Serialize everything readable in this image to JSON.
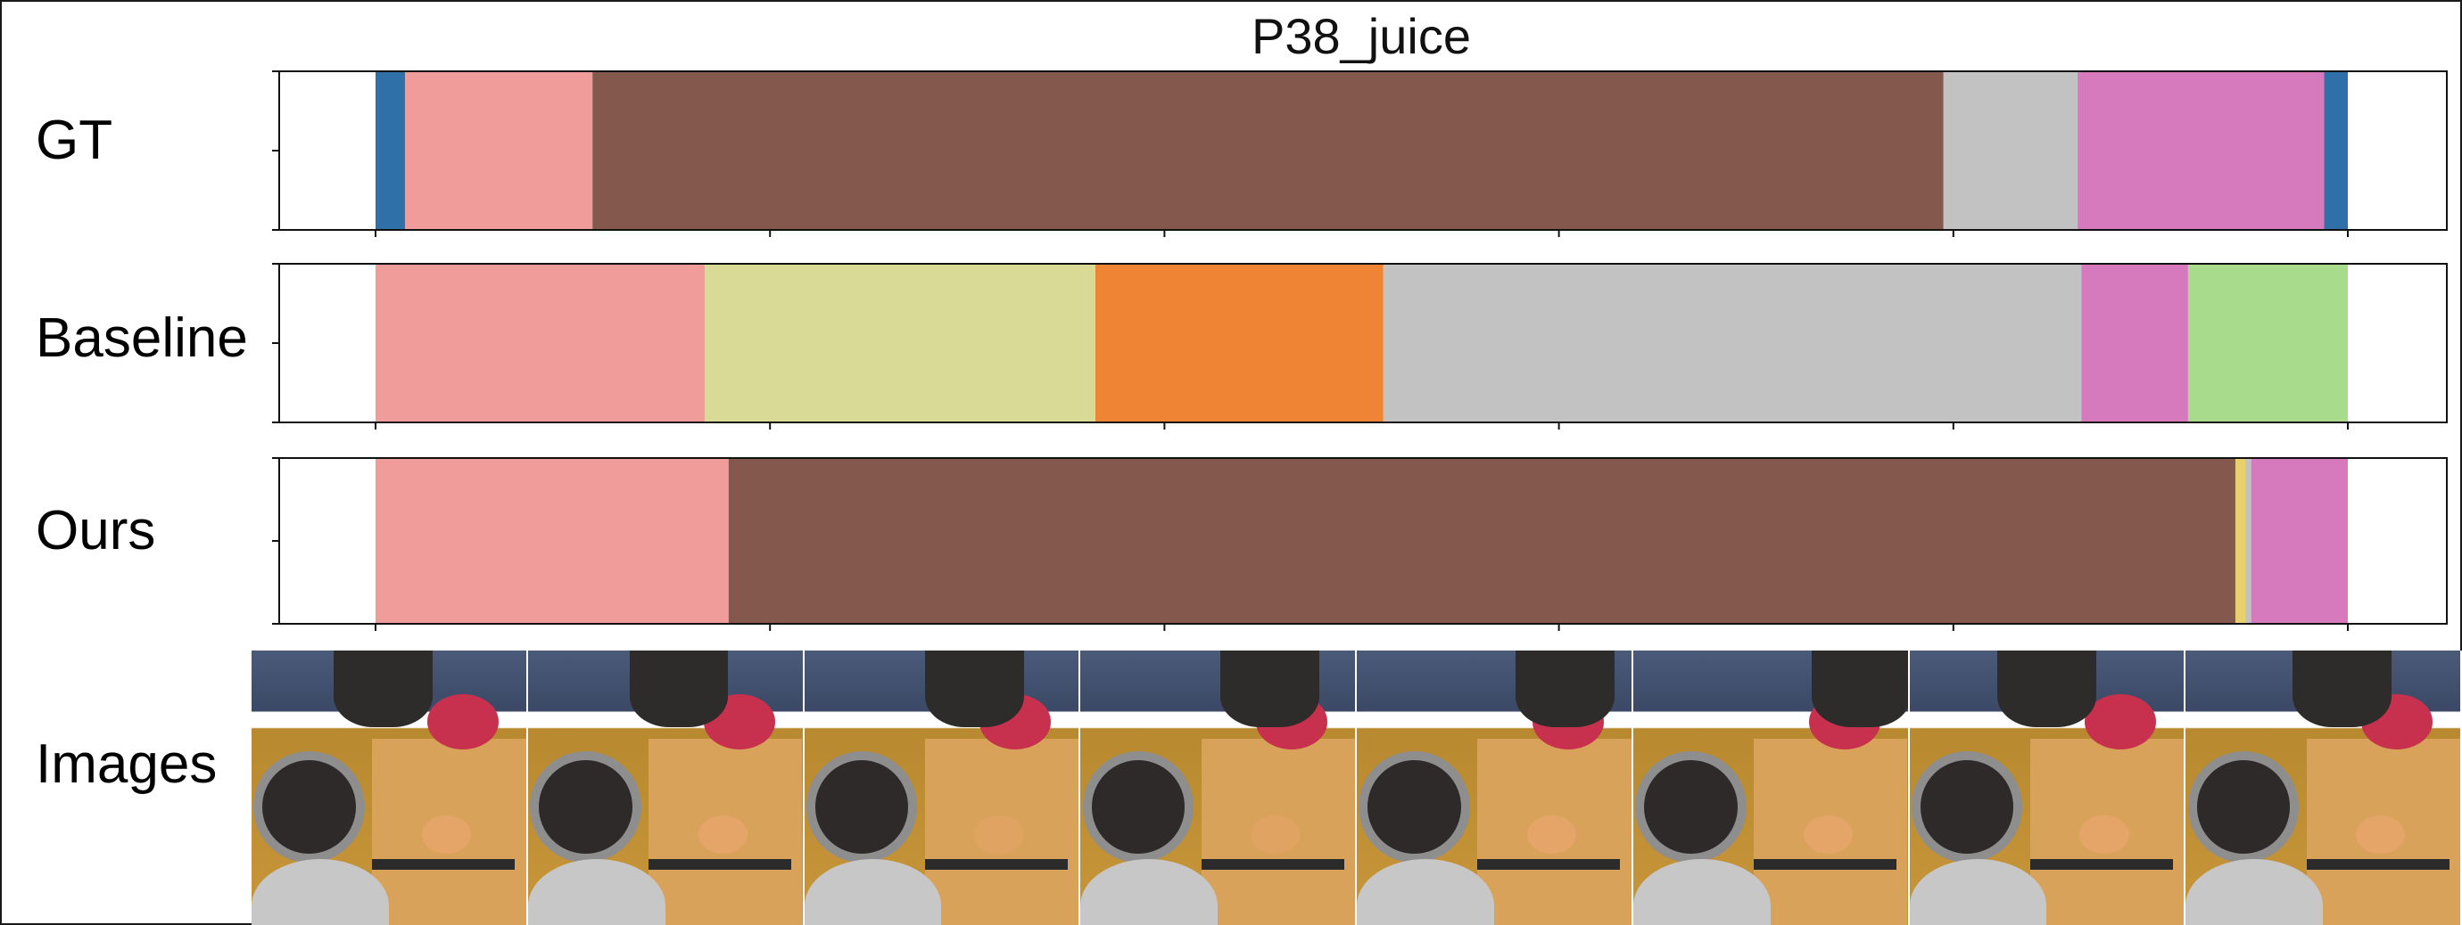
{
  "chart_data": {
    "type": "segmentation_timeline",
    "title": "P38_juice",
    "rows": [
      {
        "label": "GT",
        "segments": [
          {
            "start": 0.0,
            "end": 0.015,
            "color": "#3070a8"
          },
          {
            "start": 0.015,
            "end": 0.11,
            "color": "#f09c9a"
          },
          {
            "start": 0.11,
            "end": 0.795,
            "color": "#84584d"
          },
          {
            "start": 0.795,
            "end": 0.863,
            "color": "#c2c2c2"
          },
          {
            "start": 0.863,
            "end": 0.988,
            "color": "#d679bd"
          },
          {
            "start": 0.988,
            "end": 1.0,
            "color": "#3070a8"
          }
        ]
      },
      {
        "label": "Baseline",
        "segments": [
          {
            "start": 0.0,
            "end": 0.167,
            "color": "#f09c9a"
          },
          {
            "start": 0.167,
            "end": 0.365,
            "color": "#d9da96"
          },
          {
            "start": 0.365,
            "end": 0.511,
            "color": "#ef8534"
          },
          {
            "start": 0.511,
            "end": 0.865,
            "color": "#c2c2c2"
          },
          {
            "start": 0.865,
            "end": 0.919,
            "color": "#d679bd"
          },
          {
            "start": 0.919,
            "end": 1.0,
            "color": "#a8dc8c"
          }
        ]
      },
      {
        "label": "Ours",
        "segments": [
          {
            "start": 0.0,
            "end": 0.179,
            "color": "#f09c9a"
          },
          {
            "start": 0.179,
            "end": 0.943,
            "color": "#84584d"
          },
          {
            "start": 0.943,
            "end": 0.948,
            "color": "#e8d06e"
          },
          {
            "start": 0.948,
            "end": 0.951,
            "color": "#c2c2c2"
          },
          {
            "start": 0.951,
            "end": 1.0,
            "color": "#d679bd"
          }
        ]
      }
    ],
    "images_label": "Images",
    "image_count": 8,
    "xticks_count": 6
  }
}
